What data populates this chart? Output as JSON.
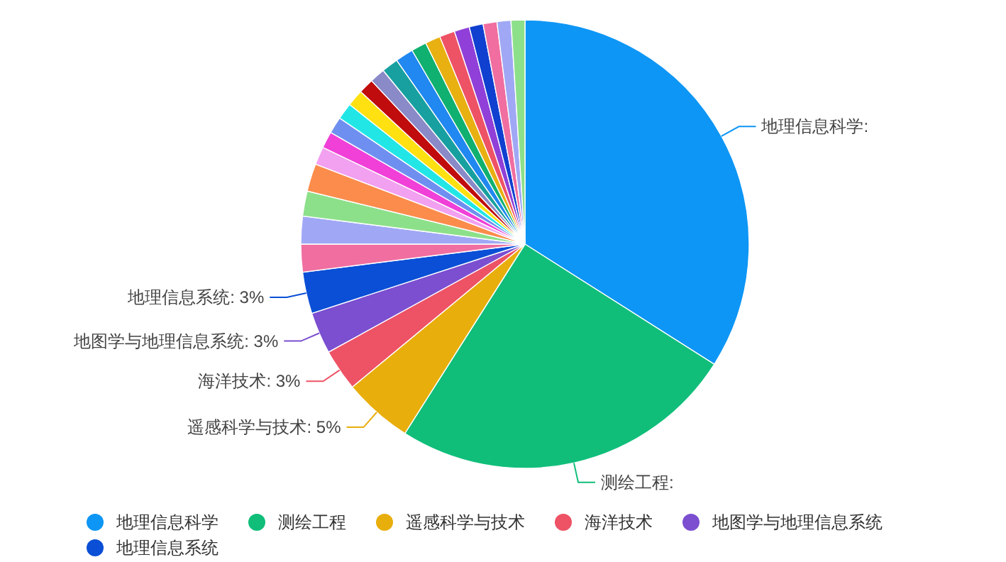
{
  "chart_data": {
    "type": "pie",
    "categories": [
      "地理信息科学",
      "测绘工程",
      "遥感科学与技术",
      "海洋技术",
      "地图学与地理信息系统",
      "地理信息系统",
      null,
      null,
      null,
      null,
      null,
      null,
      null,
      null,
      null,
      null,
      null,
      null,
      null,
      null,
      null,
      null,
      null,
      null,
      null,
      null,
      null
    ],
    "values": [
      34.0,
      25.0,
      5,
      3,
      3,
      3,
      2.0,
      2.0,
      1.8,
      2.0,
      1.3,
      1.2,
      1.2,
      1.2,
      1.2,
      1.1,
      1.1,
      1.2,
      1.3,
      1.1,
      1.1,
      1.1,
      1.1,
      1.0,
      1.0,
      1.0,
      1.0
    ],
    "colors": [
      "#0d96f5",
      "#10be7a",
      "#e8ae0c",
      "#ee5265",
      "#7b4fd0",
      "#0a4fd6",
      "#f06ea0",
      "#a0a8f5",
      "#8de08a",
      "#fb8c4c",
      "#f2a0f0",
      "#f040d8",
      "#6f8ff0",
      "#22e6e6",
      "#ffe011",
      "#c00c0c",
      "#8a8ac8",
      "#18a0a0",
      "#2088f0",
      "#10b070",
      "#e8b010",
      "#ee5265",
      "#9040d8",
      "#1040d0",
      "#f06ea0",
      "#a0a8f5",
      "#8de08a"
    ],
    "value_labels": [
      "地理信息科学:",
      "测绘工程:",
      "遥感科学与技术: 5%",
      "海洋技术: 3%",
      "地图学与地理信息系统: 3%",
      "地理信息系统: 3%",
      null,
      null,
      null,
      null,
      null,
      null,
      null,
      null,
      null,
      null,
      null,
      null,
      null,
      null,
      null,
      null,
      null,
      null,
      null,
      null,
      null
    ],
    "legend": "bottom"
  }
}
